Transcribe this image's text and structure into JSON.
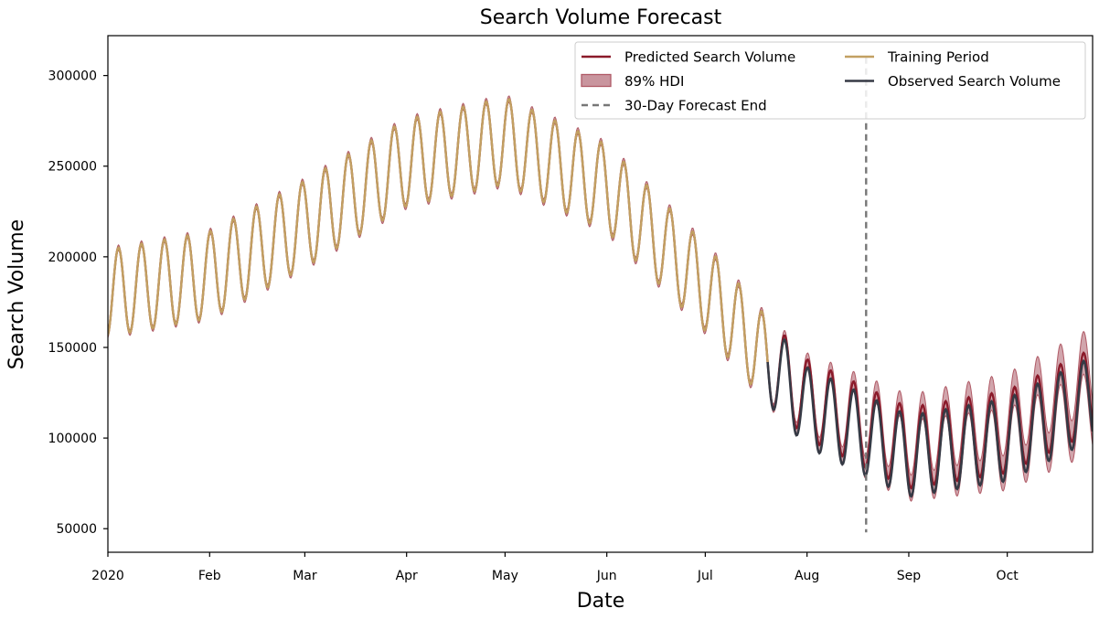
{
  "chart_data": {
    "type": "line",
    "title": "Search Volume Forecast",
    "xlabel": "Date",
    "ylabel": "Search Volume",
    "x_start": "2020-01-01",
    "x_end": "2020-10-27",
    "xlim": [
      "2020-01-01",
      "2020-10-27"
    ],
    "ylim": [
      37000,
      322000
    ],
    "x_ticks": [
      {
        "date": "2020-01-01",
        "label": "2020"
      },
      {
        "date": "2020-02-01",
        "label": "Feb"
      },
      {
        "date": "2020-03-01",
        "label": "Mar"
      },
      {
        "date": "2020-04-01",
        "label": "Apr"
      },
      {
        "date": "2020-05-01",
        "label": "May"
      },
      {
        "date": "2020-06-01",
        "label": "Jun"
      },
      {
        "date": "2020-07-01",
        "label": "Jul"
      },
      {
        "date": "2020-08-01",
        "label": "Aug"
      },
      {
        "date": "2020-09-01",
        "label": "Sep"
      },
      {
        "date": "2020-10-01",
        "label": "Oct"
      }
    ],
    "y_ticks": [
      {
        "value": 50000,
        "label": "50000"
      },
      {
        "value": 100000,
        "label": "100000"
      },
      {
        "value": 150000,
        "label": "150000"
      },
      {
        "value": 200000,
        "label": "200000"
      },
      {
        "value": 250000,
        "label": "250000"
      },
      {
        "value": 300000,
        "label": "300000"
      }
    ],
    "training_end": "2020-07-20",
    "forecast_end": "2020-08-19",
    "weekly_period_days": 7,
    "trend": [
      {
        "date": "2020-01-01",
        "value": 180000
      },
      {
        "date": "2020-02-01",
        "value": 190000
      },
      {
        "date": "2020-03-01",
        "value": 218000
      },
      {
        "date": "2020-04-01",
        "value": 252000
      },
      {
        "date": "2020-05-01",
        "value": 264000
      },
      {
        "date": "2020-06-01",
        "value": 238000
      },
      {
        "date": "2020-07-01",
        "value": 183000
      },
      {
        "date": "2020-08-01",
        "value": 117000
      },
      {
        "date": "2020-09-01",
        "value": 90000
      },
      {
        "date": "2020-10-01",
        "value": 99000
      },
      {
        "date": "2020-10-27",
        "value": 122000
      }
    ],
    "weekly_amplitude": [
      {
        "date": "2020-01-01",
        "value": 24000
      },
      {
        "date": "2020-05-01",
        "value": 24000
      },
      {
        "date": "2020-07-15",
        "value": 24000
      },
      {
        "date": "2020-08-01",
        "value": 22000
      },
      {
        "date": "2020-10-27",
        "value": 23000
      }
    ],
    "prediction_offset_after_training": 4500,
    "hdi_halfwidth": [
      {
        "date": "2020-01-01",
        "value": 1500
      },
      {
        "date": "2020-07-20",
        "value": 2000
      },
      {
        "date": "2020-08-19",
        "value": 6000
      },
      {
        "date": "2020-10-27",
        "value": 12000
      }
    ],
    "series": [
      {
        "name": "Predicted Search Volume",
        "color": "#8b1a2a"
      },
      {
        "name": "89% HDI",
        "color": "#c9959e",
        "edge": "#b05a66"
      },
      {
        "name": "30-Day Forecast End",
        "color": "#777777"
      },
      {
        "name": "Training Period",
        "color": "#c2a062"
      },
      {
        "name": "Observed Search Volume",
        "color": "#363a45"
      }
    ],
    "legend": {
      "placement": "top-right",
      "columns": 2
    },
    "grid": false
  }
}
